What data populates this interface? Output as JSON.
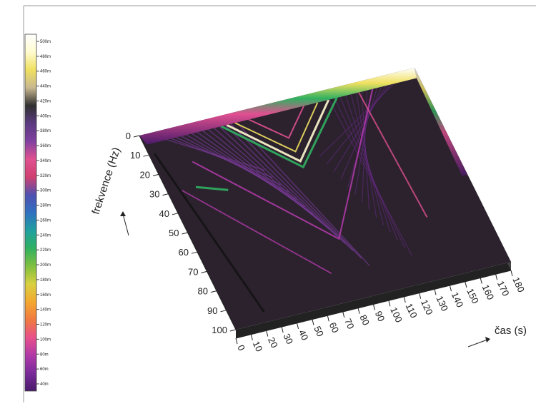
{
  "chart_data": {
    "type": "surface3d",
    "xlabel": "čas (s)",
    "ylabel": "frekvence (Hz)",
    "xlim": [
      0,
      180
    ],
    "xticks": [
      0,
      10,
      20,
      30,
      40,
      50,
      60,
      70,
      80,
      90,
      100,
      110,
      120,
      130,
      140,
      150,
      160,
      170,
      180
    ],
    "ylim": [
      0,
      100
    ],
    "yticks": [
      0,
      10,
      20,
      30,
      40,
      50,
      60,
      70,
      80,
      90,
      100
    ],
    "clim": [
      40,
      500
    ],
    "cticks": [
      {
        "value": 40,
        "label": "40m"
      },
      {
        "value": 60,
        "label": "60m"
      },
      {
        "value": 80,
        "label": "80m"
      },
      {
        "value": 100,
        "label": "100m"
      },
      {
        "value": 120,
        "label": "120m"
      },
      {
        "value": 140,
        "label": "140m"
      },
      {
        "value": 160,
        "label": "160m"
      },
      {
        "value": 180,
        "label": "180m"
      },
      {
        "value": 200,
        "label": "200m"
      },
      {
        "value": 220,
        "label": "220m"
      },
      {
        "value": 240,
        "label": "240m"
      },
      {
        "value": 260,
        "label": "260m"
      },
      {
        "value": 280,
        "label": "280m"
      },
      {
        "value": 300,
        "label": "300m"
      },
      {
        "value": 320,
        "label": "320m"
      },
      {
        "value": 340,
        "label": "340m"
      },
      {
        "value": 360,
        "label": "360m"
      },
      {
        "value": 380,
        "label": "380m"
      },
      {
        "value": 400,
        "label": "400m"
      },
      {
        "value": 420,
        "label": "420m"
      },
      {
        "value": 440,
        "label": "440m"
      },
      {
        "value": 460,
        "label": "460m"
      },
      {
        "value": 480,
        "label": "480m"
      },
      {
        "value": 500,
        "label": "500m"
      }
    ],
    "colormap": [
      "#4a1a6a",
      "#7a2a9a",
      "#b03aa8",
      "#e8508a",
      "#f07a40",
      "#f4a830",
      "#d8d040",
      "#80c040",
      "#30b060",
      "#20a0a0",
      "#3070c0",
      "#5050b0",
      "#d04070",
      "#e05090",
      "#8040a0",
      "#5a3a80",
      "#303030",
      "#c8b890",
      "#f0e060",
      "#fffbd0",
      "#ffffff"
    ]
  }
}
